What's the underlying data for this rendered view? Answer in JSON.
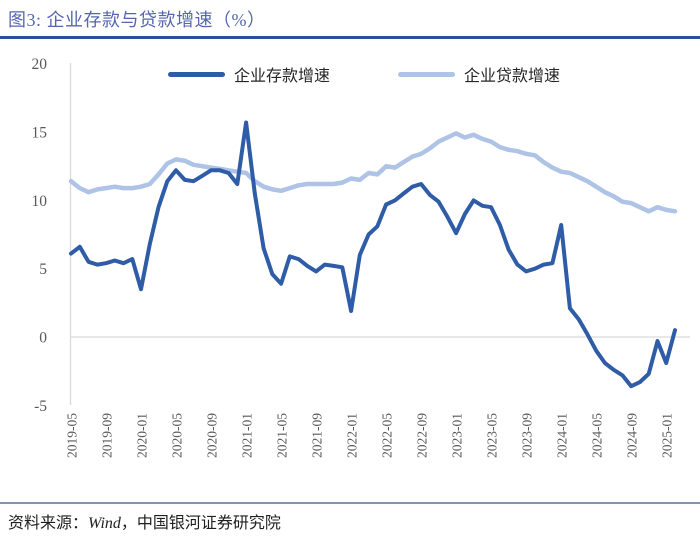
{
  "title": "图3: 企业存款与贷款增速（%）",
  "source": {
    "prefix": "资料来源：",
    "wind": "Wind",
    "rest": "，中国银河证券研究院"
  },
  "colors": {
    "title_text": "#5566AE",
    "title_rule": "#2B4EA2",
    "source_rule": "#8096B4",
    "axis_text": "#595959",
    "gridline": "#D9D9D9",
    "deposit_line": "#2E5CA6",
    "loan_line": "#AEC3E5"
  },
  "chart_data": {
    "type": "line",
    "title": "企业存款与贷款增速（%）",
    "xlabel": "",
    "ylabel": "",
    "ylim": [
      -5,
      20
    ],
    "y_ticks": [
      20,
      15,
      10,
      5,
      0,
      -5
    ],
    "grid": "only zero line",
    "legend_position": "top",
    "x": [
      "2019-05",
      "2019-06",
      "2019-07",
      "2019-08",
      "2019-09",
      "2019-10",
      "2019-11",
      "2019-12",
      "2020-01",
      "2020-02",
      "2020-03",
      "2020-04",
      "2020-05",
      "2020-06",
      "2020-07",
      "2020-08",
      "2020-09",
      "2020-10",
      "2020-11",
      "2020-12",
      "2021-01",
      "2021-02",
      "2021-03",
      "2021-04",
      "2021-05",
      "2021-06",
      "2021-07",
      "2021-08",
      "2021-09",
      "2021-10",
      "2021-11",
      "2021-12",
      "2022-01",
      "2022-02",
      "2022-03",
      "2022-04",
      "2022-05",
      "2022-06",
      "2022-07",
      "2022-08",
      "2022-09",
      "2022-10",
      "2022-11",
      "2022-12",
      "2023-01",
      "2023-02",
      "2023-03",
      "2023-04",
      "2023-05",
      "2023-06",
      "2023-07",
      "2023-08",
      "2023-09",
      "2023-10",
      "2023-11",
      "2023-12",
      "2024-01",
      "2024-02",
      "2024-03",
      "2024-04",
      "2024-05",
      "2024-06",
      "2024-07",
      "2024-08",
      "2024-09",
      "2024-10",
      "2024-11",
      "2024-12",
      "2025-01",
      "2025-02"
    ],
    "x_tick_labels": [
      "2019-05",
      "2019-09",
      "2020-01",
      "2020-05",
      "2020-09",
      "2021-01",
      "2021-05",
      "2021-09",
      "2022-01",
      "2022-05",
      "2022-09",
      "2023-01",
      "2023-05",
      "2023-09",
      "2024-01",
      "2024-05",
      "2024-09",
      "2025-01"
    ],
    "series": [
      {
        "name": "企业存款增速",
        "color": "#2E5CA6",
        "values": [
          6.1,
          6.6,
          5.5,
          5.3,
          5.4,
          5.6,
          5.4,
          5.7,
          3.5,
          6.8,
          9.5,
          11.4,
          12.2,
          11.5,
          11.4,
          11.8,
          12.2,
          12.2,
          12.0,
          11.2,
          15.7,
          10.5,
          6.5,
          4.6,
          3.9,
          5.9,
          5.7,
          5.2,
          4.8,
          5.3,
          5.2,
          5.1,
          1.9,
          6.0,
          7.5,
          8.1,
          9.7,
          10.0,
          10.5,
          11.0,
          11.2,
          10.4,
          9.9,
          8.8,
          7.6,
          9.0,
          10.0,
          9.6,
          9.5,
          8.2,
          6.4,
          5.3,
          4.8,
          5.0,
          5.3,
          5.4,
          8.2,
          2.1,
          1.3,
          0.2,
          -1.0,
          -1.9,
          -2.4,
          -2.8,
          -3.6,
          -3.3,
          -2.7,
          -0.3,
          -1.9,
          0.5
        ]
      },
      {
        "name": "企业贷款增速",
        "color": "#AEC3E5",
        "values": [
          11.4,
          10.9,
          10.6,
          10.8,
          10.9,
          11.0,
          10.9,
          10.9,
          11.0,
          11.2,
          11.9,
          12.7,
          13.0,
          12.9,
          12.6,
          12.5,
          12.4,
          12.3,
          12.2,
          12.1,
          12.0,
          11.4,
          11.0,
          10.8,
          10.7,
          10.9,
          11.1,
          11.2,
          11.2,
          11.2,
          11.2,
          11.3,
          11.6,
          11.5,
          12.0,
          11.9,
          12.5,
          12.4,
          12.8,
          13.2,
          13.4,
          13.8,
          14.3,
          14.6,
          14.9,
          14.6,
          14.8,
          14.5,
          14.3,
          13.9,
          13.7,
          13.6,
          13.4,
          13.3,
          12.8,
          12.4,
          12.1,
          12.0,
          11.7,
          11.4,
          11.0,
          10.6,
          10.3,
          9.9,
          9.8,
          9.5,
          9.2,
          9.5,
          9.3,
          9.2
        ]
      }
    ]
  }
}
